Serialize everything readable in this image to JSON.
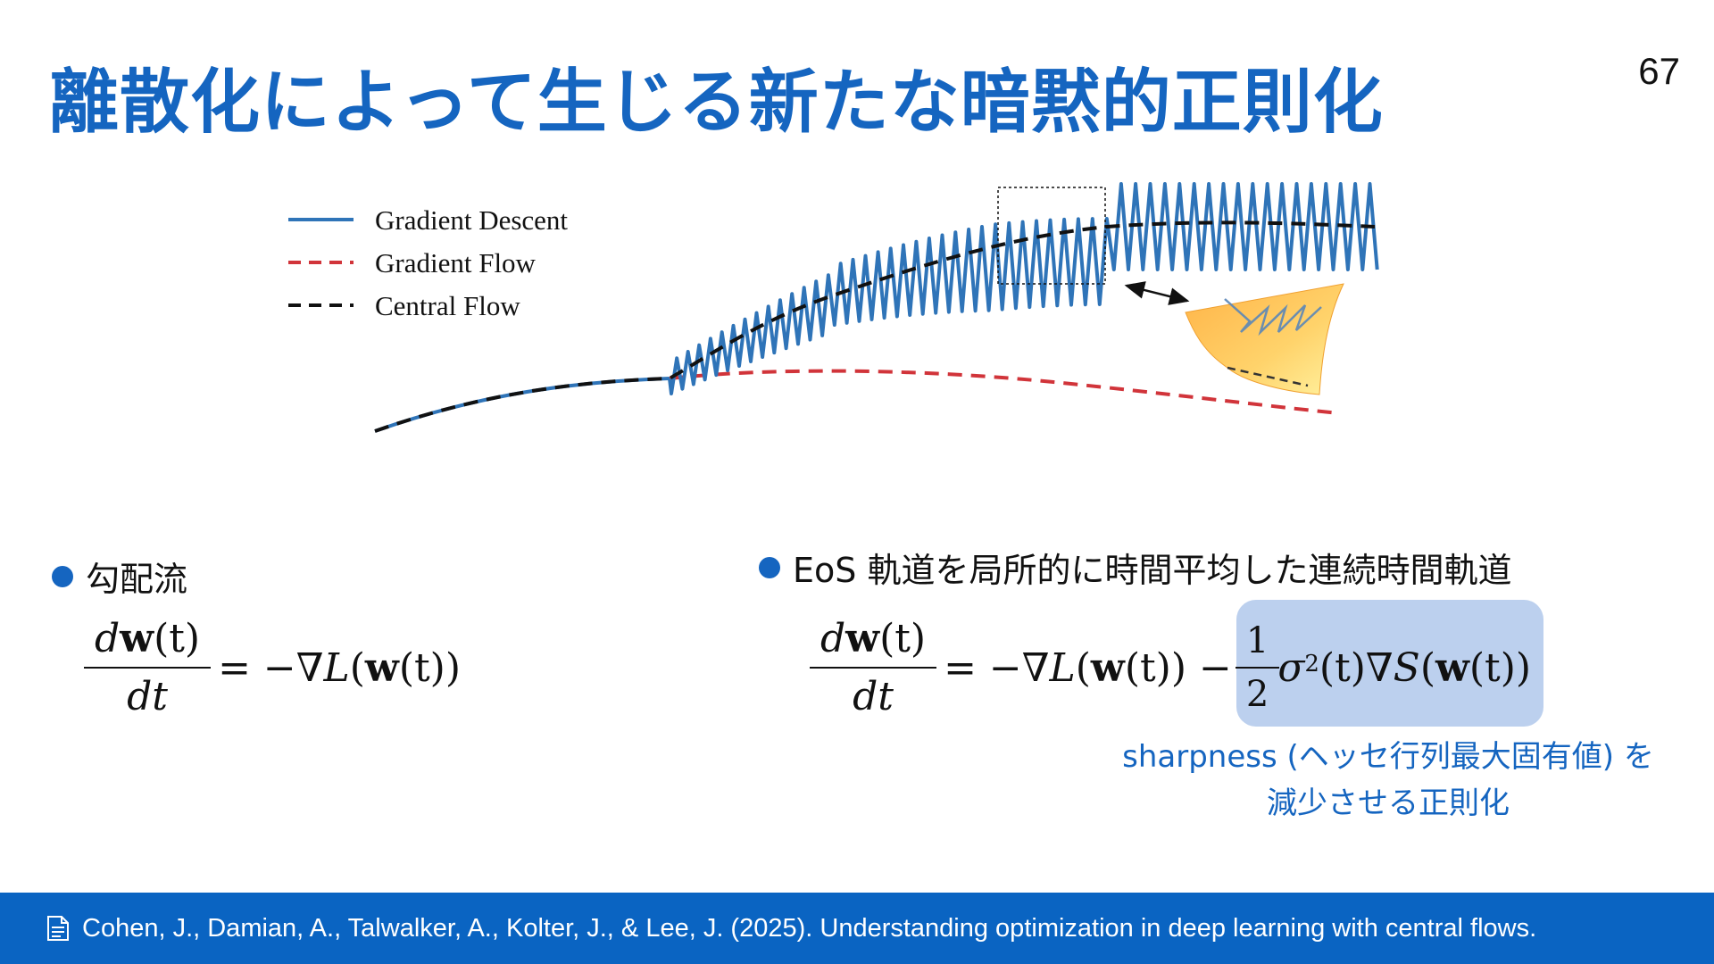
{
  "slide": {
    "title": "離散化によって生じる新たな暗黙的正則化",
    "page_number": "67"
  },
  "figure": {
    "legend": [
      {
        "label": "Gradient Descent",
        "color": "#2f74b8",
        "style": "solid"
      },
      {
        "label": "Gradient Flow",
        "color": "#d1343a",
        "style": "dashed"
      },
      {
        "label": "Central Flow",
        "color": "#111111",
        "style": "dashed"
      }
    ]
  },
  "left": {
    "bullet": "勾配流",
    "eq": {
      "num_d": "d",
      "num_w": "w",
      "num_t": "(t)",
      "den": "dt",
      "rhs_pre": "= −∇",
      "L": "L",
      "open": "(",
      "w": "w",
      "tail": "(t))"
    }
  },
  "right": {
    "bullet": "EoS 軌道を局所的に時間平均した連続時間軌道",
    "eq": {
      "num_d": "d",
      "num_w": "w",
      "num_t": "(t)",
      "den": "dt",
      "rhs_pre": "= −∇",
      "L": "L",
      "open": "(",
      "w": "w",
      "mid": "(t)) −",
      "half_num": "1",
      "half_den": "2",
      "sigma": "σ",
      "sup": "2",
      "after_sigma": "(t)∇",
      "S": "S",
      "open2": "(",
      "w2": "w",
      "tail": "(t))"
    },
    "caption_line1": "sharpness (ヘッセ行列最大固有値) を",
    "caption_line2": "減少させる正則化",
    "highlight_color": "#bcd0ee"
  },
  "footer": {
    "icon": "document-icon",
    "citation": "Cohen, J., Damian, A., Talwalker, A., Kolter, J., & Lee, J. (2025). Understanding optimization in deep learning with central flows."
  }
}
